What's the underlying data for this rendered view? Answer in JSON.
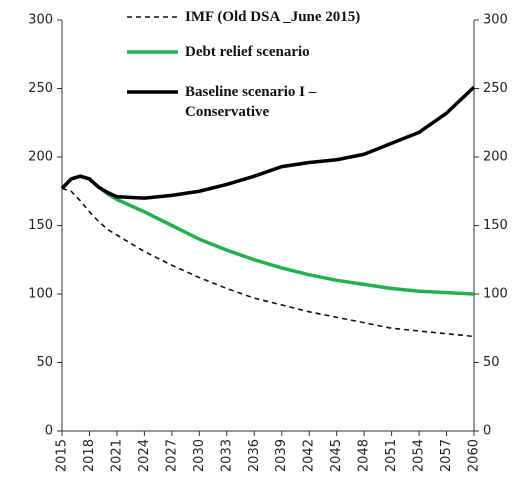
{
  "chart_data": {
    "type": "line",
    "x": [
      2015,
      2016,
      2017,
      2018,
      2019,
      2020,
      2021,
      2024,
      2027,
      2030,
      2033,
      2036,
      2039,
      2042,
      2045,
      2048,
      2051,
      2054,
      2057,
      2060
    ],
    "series": [
      {
        "name": "IMF (Old DSA _June 2015)",
        "color": "#111111",
        "style": "dashed",
        "values": [
          177,
          175,
          168,
          160,
          153,
          147,
          143,
          131,
          121,
          112,
          104,
          97,
          92,
          87,
          83,
          79,
          75,
          73,
          71,
          69
        ]
      },
      {
        "name": "Debt relief scenario",
        "color": "#22b14c",
        "style": "solid",
        "values": [
          177,
          184,
          186,
          184,
          178,
          173,
          169,
          160,
          150,
          140,
          132,
          125,
          119,
          114,
          110,
          107,
          104,
          102,
          101,
          100
        ]
      },
      {
        "name": "Baseline scenario I – Conservative",
        "color": "#000000",
        "style": "solid",
        "values": [
          177,
          184,
          186,
          184,
          178,
          174,
          171,
          170,
          172,
          175,
          180,
          186,
          193,
          196,
          198,
          202,
          210,
          218,
          232,
          251
        ]
      }
    ],
    "xlim": [
      2015,
      2060
    ],
    "xticks": [
      2015,
      2018,
      2021,
      2024,
      2027,
      2030,
      2033,
      2036,
      2039,
      2042,
      2045,
      2048,
      2051,
      2054,
      2057,
      2060
    ],
    "ylim": [
      0,
      300
    ],
    "yticks": [
      0,
      50,
      100,
      150,
      200,
      250,
      300
    ],
    "y2lim": [
      0,
      300
    ],
    "y2ticks": [
      0,
      50,
      100,
      150,
      200,
      250,
      300
    ],
    "grid": false
  }
}
